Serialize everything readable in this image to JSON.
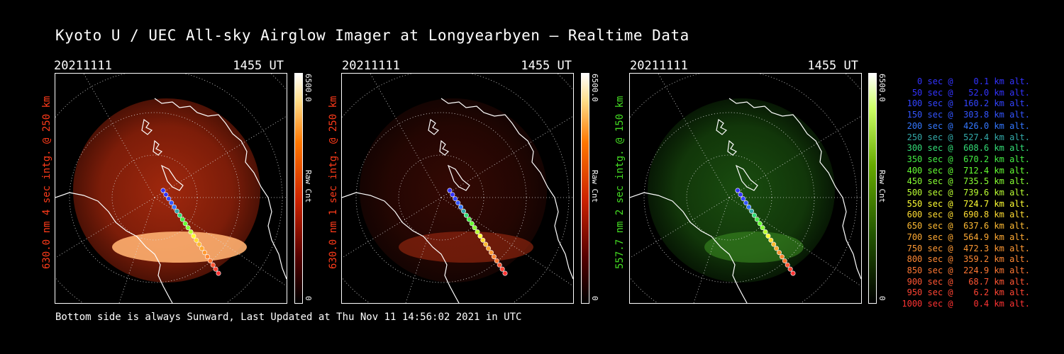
{
  "title": "Kyoto U / UEC All-sky Airglow Imager at Longyearbyen — Realtime Data",
  "footer": "Bottom side is always Sunward, Last Updated at Thu Nov 11 14:56:02 2021 in UTC",
  "panels": [
    {
      "date": "20211111",
      "time": "1455 UT",
      "ylabel": "630.0 nm 4 sec intg. @ 250 km",
      "ylabel_color": "#ff3b1a",
      "cbar_max": "6500.0",
      "cbar_min": "0",
      "cbar_unit": "Raw Cnt",
      "colormap": "red"
    },
    {
      "date": "20211111",
      "time": "1455 UT",
      "ylabel": "630.0 nm 1 sec intg. @ 250 km",
      "ylabel_color": "#ff3b1a",
      "cbar_max": "6500.0",
      "cbar_min": "0",
      "cbar_unit": "Raw Cnt",
      "colormap": "red"
    },
    {
      "date": "20211111",
      "time": "1455 UT",
      "ylabel": "557.7 nm 2 sec intg. @ 150 km",
      "ylabel_color": "#44dd22",
      "cbar_max": "6500.0",
      "cbar_min": "0",
      "cbar_unit": "Raw Cnt",
      "colormap": "green"
    }
  ],
  "legend": [
    {
      "text": "   0 sec @    0.1 km alt.",
      "color": "#3333ff"
    },
    {
      "text": "  50 sec @   52.0 km alt.",
      "color": "#3333ff"
    },
    {
      "text": " 100 sec @  160.2 km alt.",
      "color": "#3344ff"
    },
    {
      "text": " 150 sec @  303.8 km alt.",
      "color": "#3355ff"
    },
    {
      "text": " 200 sec @  426.0 km alt.",
      "color": "#3377ff"
    },
    {
      "text": " 250 sec @  527.4 km alt.",
      "color": "#33aaaa"
    },
    {
      "text": " 300 sec @  608.6 km alt.",
      "color": "#33dd77"
    },
    {
      "text": " 350 sec @  670.2 km alt.",
      "color": "#44ee44"
    },
    {
      "text": " 400 sec @  712.4 km alt.",
      "color": "#66ff33"
    },
    {
      "text": " 450 sec @  735.5 km alt.",
      "color": "#88ff33"
    },
    {
      "text": " 500 sec @  739.6 km alt.",
      "color": "#bbff33"
    },
    {
      "text": " 550 sec @  724.7 km alt.",
      "color": "#ffff33"
    },
    {
      "text": " 600 sec @  690.8 km alt.",
      "color": "#ffdd33"
    },
    {
      "text": " 650 sec @  637.6 km alt.",
      "color": "#ffbb33"
    },
    {
      "text": " 700 sec @  564.9 km alt.",
      "color": "#ffaa33"
    },
    {
      "text": " 750 sec @  472.3 km alt.",
      "color": "#ff9933"
    },
    {
      "text": " 800 sec @  359.2 km alt.",
      "color": "#ff8833"
    },
    {
      "text": " 850 sec @  224.9 km alt.",
      "color": "#ff7733"
    },
    {
      "text": " 900 sec @   68.7 km alt.",
      "color": "#ff5533"
    },
    {
      "text": " 950 sec @    6.2 km alt.",
      "color": "#ff4433"
    },
    {
      "text": "1000 sec @    0.4 km alt.",
      "color": "#ff3333"
    }
  ]
}
